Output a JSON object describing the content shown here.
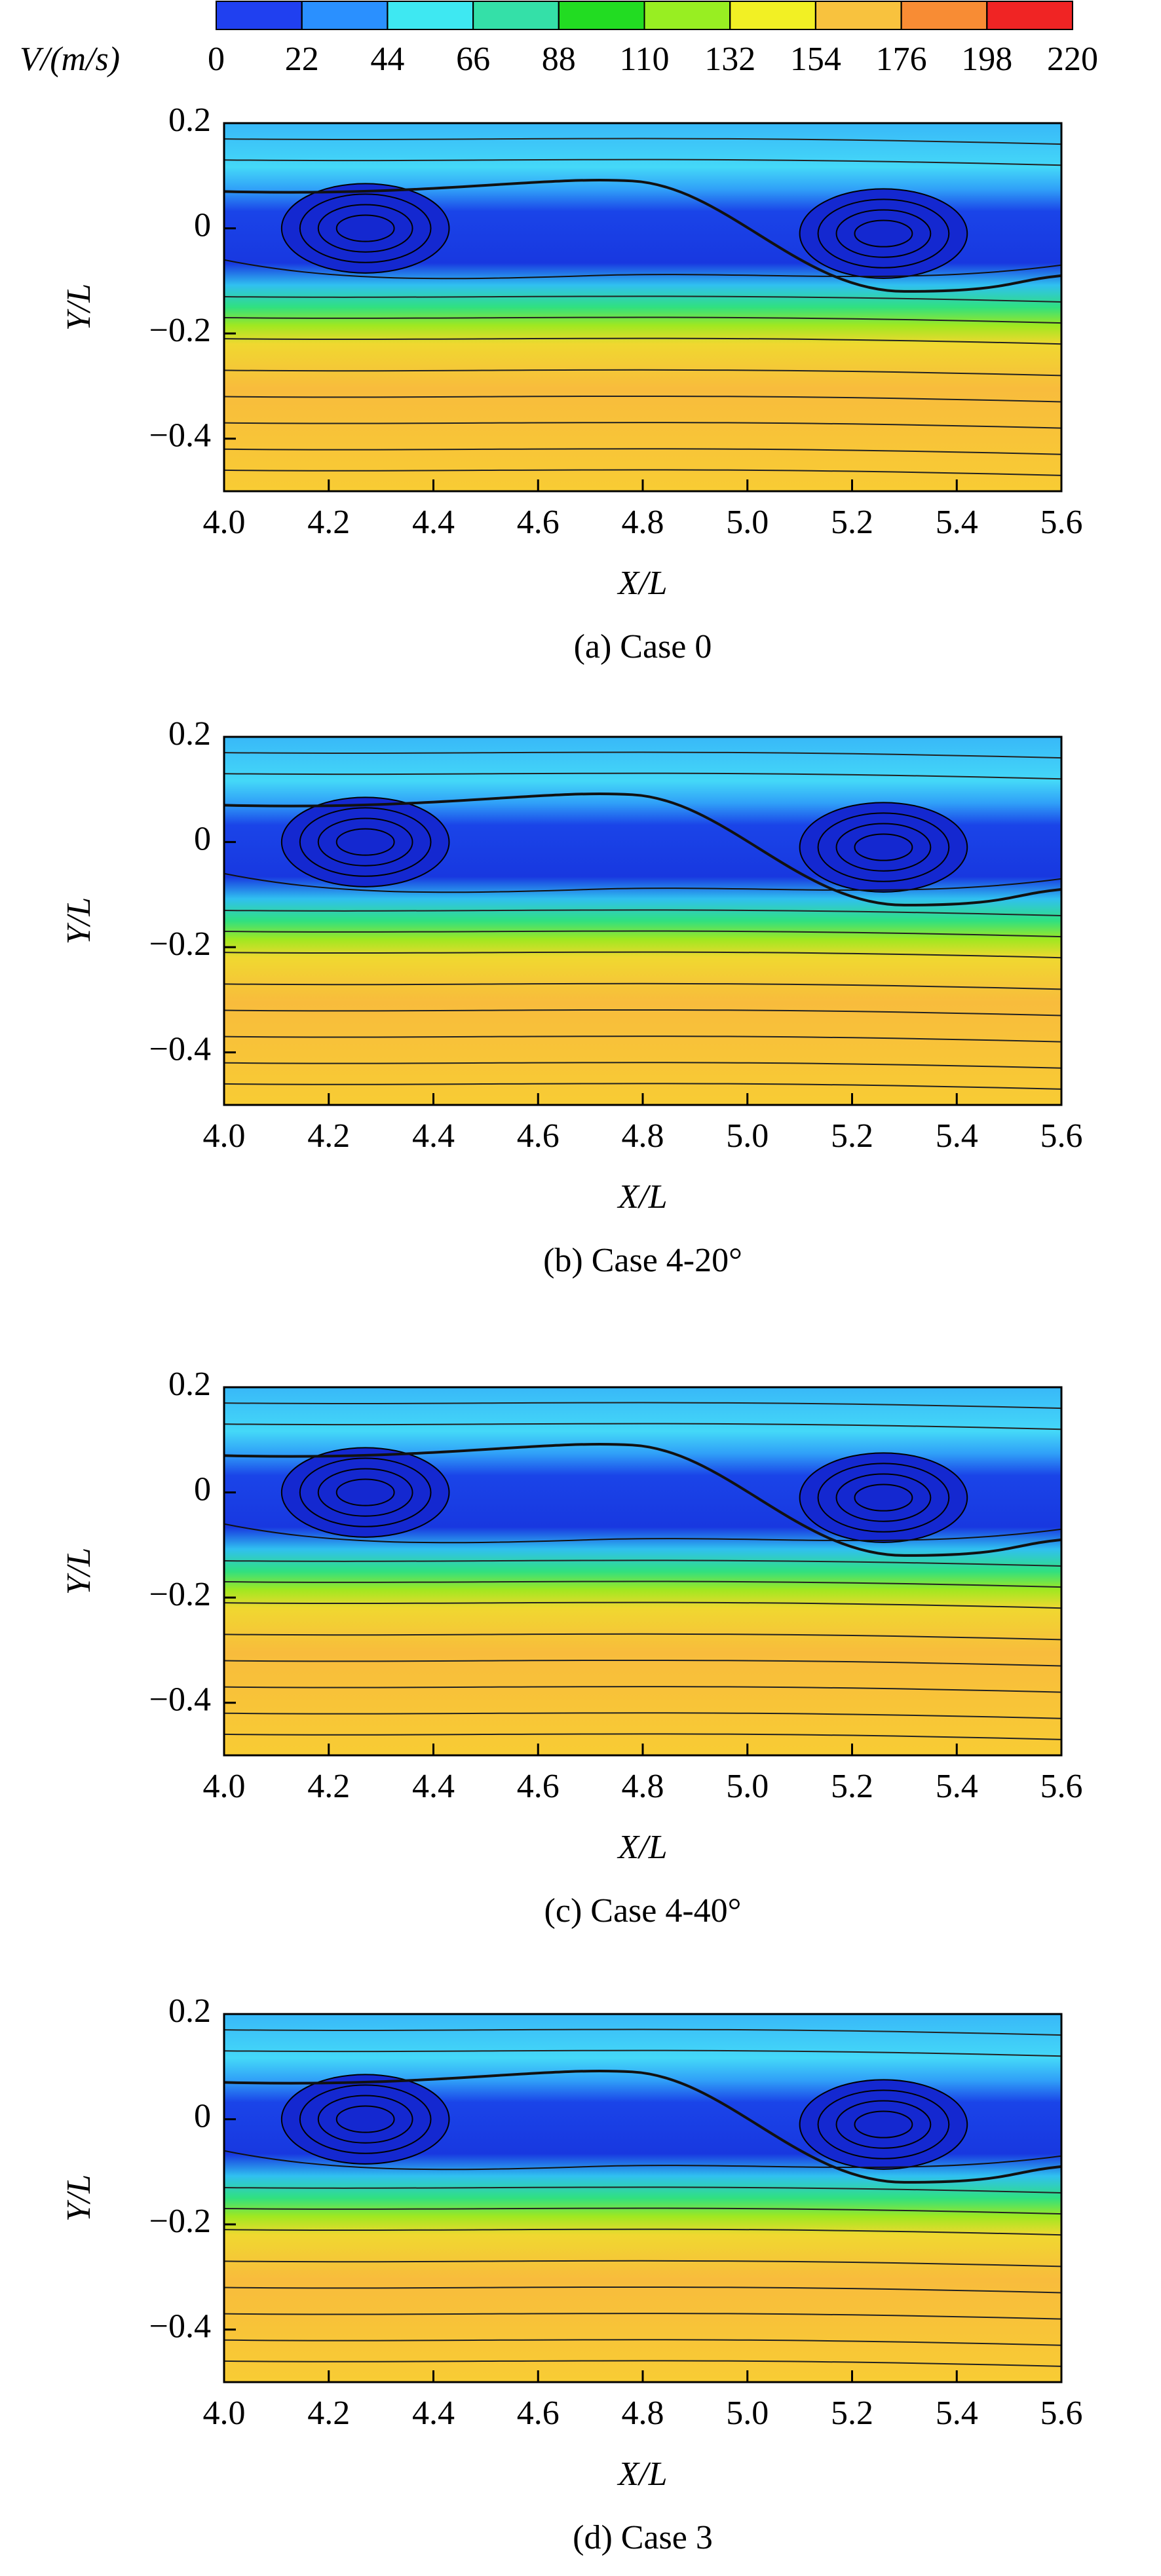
{
  "colorbar": {
    "label": "V/(m/s)",
    "ticks": [
      0,
      22,
      44,
      66,
      88,
      110,
      132,
      154,
      176,
      198,
      220
    ],
    "colors": [
      "#2040f0",
      "#2a90ff",
      "#3ee8f2",
      "#34e0a8",
      "#22dc22",
      "#98ee22",
      "#f2f024",
      "#f8c23e",
      "#f88c34",
      "#f02424"
    ]
  },
  "chart_data": [
    {
      "type": "contour",
      "caption": "(a) Case 0",
      "xlabel": "X/L",
      "ylabel": "Y/L",
      "xlim": [
        4.0,
        5.6
      ],
      "ylim": [
        -0.5,
        0.2
      ],
      "xticks": [
        {
          "value": 4.0,
          "label": "4.0"
        },
        4.2,
        4.4,
        4.6,
        4.8,
        {
          "value": 5.0,
          "label": "5.0"
        },
        5.2,
        5.4,
        5.6
      ],
      "yticks": [
        {
          "value": -0.4,
          "label": "−0.4"
        },
        {
          "value": -0.2,
          "label": "−0.2"
        },
        0,
        0.2
      ]
    },
    {
      "type": "contour",
      "caption": "(b) Case 4-20°",
      "xlabel": "X/L",
      "ylabel": "Y/L",
      "xlim": [
        4.0,
        5.6
      ],
      "ylim": [
        -0.5,
        0.2
      ],
      "xticks": [
        {
          "value": 4.0,
          "label": "4.0"
        },
        4.2,
        4.4,
        4.6,
        4.8,
        {
          "value": 5.0,
          "label": "5.0"
        },
        5.2,
        5.4,
        5.6
      ],
      "yticks": [
        {
          "value": -0.4,
          "label": "−0.4"
        },
        {
          "value": -0.2,
          "label": "−0.2"
        },
        0,
        0.2
      ]
    },
    {
      "type": "contour",
      "caption": "(c) Case 4-40°",
      "xlabel": "X/L",
      "ylabel": "Y/L",
      "xlim": [
        4.0,
        5.6
      ],
      "ylim": [
        -0.5,
        0.2
      ],
      "xticks": [
        {
          "value": 4.0,
          "label": "4.0"
        },
        4.2,
        4.4,
        4.6,
        4.8,
        {
          "value": 5.0,
          "label": "5.0"
        },
        5.2,
        5.4,
        5.6
      ],
      "yticks": [
        {
          "value": -0.4,
          "label": "−0.4"
        },
        {
          "value": -0.2,
          "label": "−0.2"
        },
        0,
        0.2
      ]
    },
    {
      "type": "contour",
      "caption": "(d) Case 3",
      "xlabel": "X/L",
      "ylabel": "Y/L",
      "xlim": [
        4.0,
        5.6
      ],
      "ylim": [
        -0.5,
        0.2
      ],
      "xticks": [
        {
          "value": 4.0,
          "label": "4.0"
        },
        4.2,
        4.4,
        4.6,
        4.8,
        {
          "value": 5.0,
          "label": "5.0"
        },
        5.2,
        5.4,
        5.6
      ],
      "yticks": [
        {
          "value": -0.4,
          "label": "−0.4"
        },
        {
          "value": -0.2,
          "label": "−0.2"
        },
        0,
        0.2
      ]
    }
  ]
}
